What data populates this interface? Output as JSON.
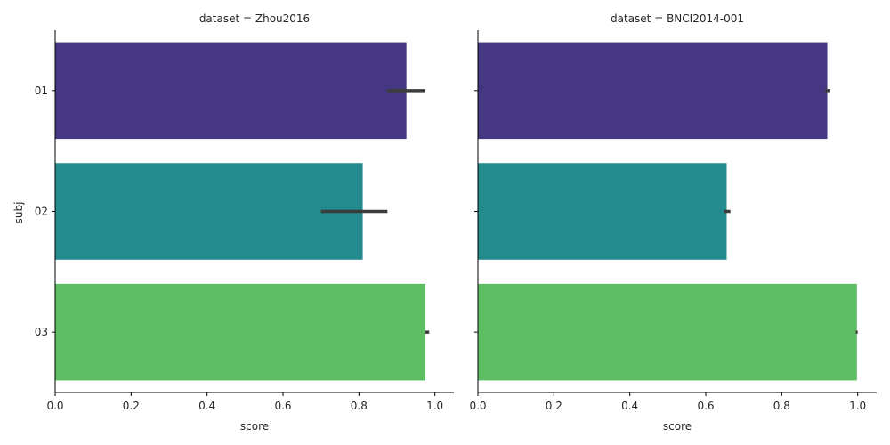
{
  "chart_data": {
    "type": "bar",
    "orientation": "horizontal",
    "ylabel": "subj",
    "xlabel": "score",
    "categories": [
      "01",
      "02",
      "03"
    ],
    "xlim": [
      0,
      1.05
    ],
    "xticks": [
      "0.0",
      "0.2",
      "0.4",
      "0.6",
      "0.8",
      "1.0"
    ],
    "colors": [
      "#453781",
      "#238a8d",
      "#5cbd62"
    ],
    "error_color": "#3c3c3c",
    "panels": [
      {
        "title": "dataset = Zhou2016",
        "values": [
          0.925,
          0.81,
          0.975
        ],
        "ci_low": [
          0.875,
          0.7,
          0.973
        ],
        "ci_high": [
          0.975,
          0.875,
          0.985
        ]
      },
      {
        "title": "dataset = BNCI2014-001",
        "values": [
          0.92,
          0.655,
          0.998
        ],
        "ci_low": [
          0.915,
          0.648,
          0.995
        ],
        "ci_high": [
          0.928,
          0.665,
          1.0
        ]
      }
    ]
  }
}
